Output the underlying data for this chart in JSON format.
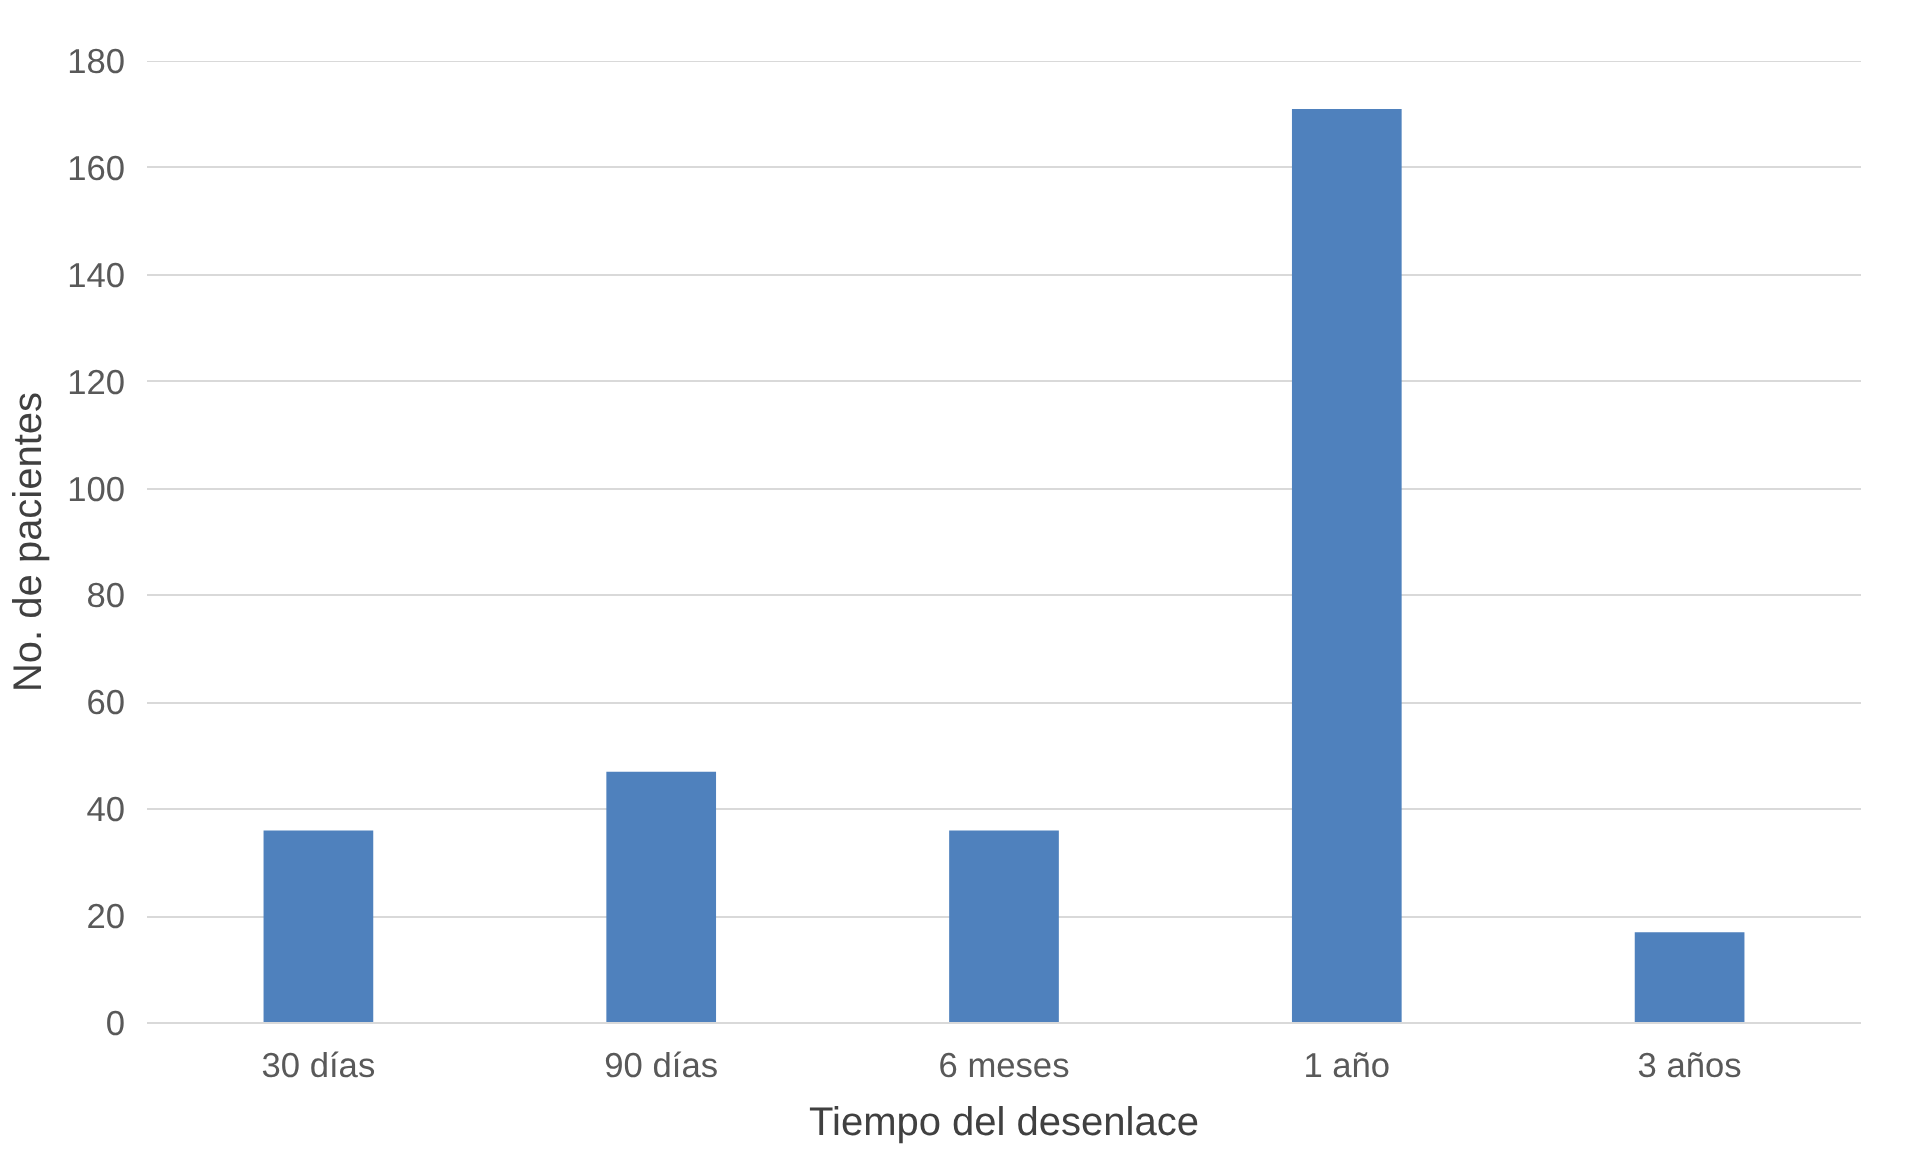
{
  "chart_data": {
    "type": "bar",
    "xlabel": "Tiempo del desenlace",
    "ylabel": "No. de pacientes",
    "categories": [
      "30 días",
      "90 días",
      "6 meses",
      "1 año",
      "3 años"
    ],
    "values": [
      36,
      47,
      36,
      171,
      17
    ],
    "color": "#4f81bd",
    "ylim": [
      0,
      180
    ],
    "yticks": [
      0,
      20,
      40,
      60,
      80,
      100,
      120,
      140,
      160,
      180
    ],
    "grid": "y"
  }
}
